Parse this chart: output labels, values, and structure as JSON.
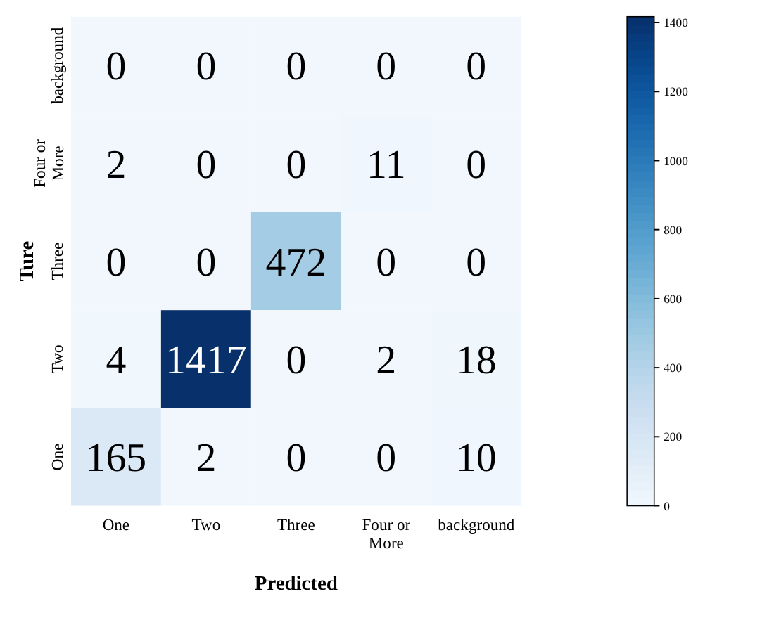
{
  "chart_data": {
    "type": "heatmap",
    "xlabel": "Predicted",
    "ylabel": "Ture",
    "categories": [
      "One",
      "Two",
      "Three",
      "Four or More",
      "background"
    ],
    "y_categories": [
      "background",
      "Four or More",
      "Three",
      "Two",
      "One"
    ],
    "cells": [
      [
        0,
        0,
        0,
        0,
        0
      ],
      [
        2,
        0,
        0,
        11,
        0
      ],
      [
        0,
        0,
        472,
        0,
        0
      ],
      [
        4,
        1417,
        0,
        2,
        18
      ],
      [
        165,
        2,
        0,
        0,
        10
      ]
    ],
    "clim": [
      0,
      1417
    ],
    "cticks": [
      0,
      200,
      400,
      600,
      800,
      1000,
      1200,
      1400
    ],
    "data_labels": true
  }
}
